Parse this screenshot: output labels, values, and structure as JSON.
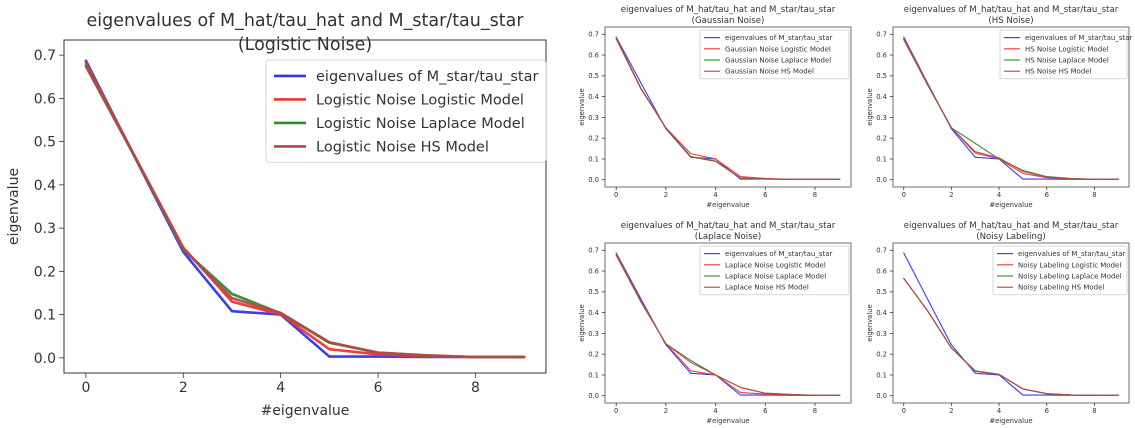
{
  "chart_data": [
    {
      "type": "line",
      "title": "eigenvalues of  M_hat/tau_hat and M_star/tau_star",
      "subtitle": "(Logistic Noise)",
      "xlabel": "#eigenvalue",
      "ylabel": "eigenvalue",
      "xlim": [
        -0.45,
        9.45
      ],
      "ylim": [
        -0.035,
        0.735
      ],
      "xticks": [
        0,
        2,
        4,
        6,
        8
      ],
      "yticks": [
        0.0,
        0.1,
        0.2,
        0.3,
        0.4,
        0.5,
        0.6,
        0.7
      ],
      "grid": false,
      "legend_position": "top-right",
      "x": [
        0,
        1,
        2,
        3,
        4,
        5,
        6,
        7,
        8,
        9
      ],
      "series": [
        {
          "name": "eigenvalues of M_star/tau_star",
          "color": "#3333ee",
          "values": [
            0.687,
            0.465,
            0.245,
            0.108,
            0.1,
            0.003,
            0.003,
            0.002,
            0.002,
            0.002
          ]
        },
        {
          "name": "Logistic Noise Logistic Model",
          "color": "#ee3333",
          "values": [
            0.682,
            0.467,
            0.255,
            0.13,
            0.1,
            0.02,
            0.008,
            0.003,
            0.002,
            0.002
          ]
        },
        {
          "name": "Logistic Noise Laplace Model",
          "color": "#2e8b2e",
          "values": [
            0.676,
            0.466,
            0.25,
            0.148,
            0.103,
            0.035,
            0.012,
            0.005,
            0.002,
            0.002
          ]
        },
        {
          "name": "Logistic Noise HS Model",
          "color": "#b04a4a",
          "values": [
            0.674,
            0.466,
            0.252,
            0.138,
            0.104,
            0.036,
            0.012,
            0.006,
            0.002,
            0.002
          ]
        }
      ]
    },
    {
      "type": "line",
      "title": "eigenvalues of  M_hat/tau_hat and M_star/tau_star",
      "subtitle": "(Gaussian Noise)",
      "xlabel": "#eigenvalue",
      "ylabel": "eigenvalue",
      "xlim": [
        -0.45,
        9.45
      ],
      "ylim": [
        -0.035,
        0.735
      ],
      "xticks": [
        0,
        2,
        4,
        6,
        8
      ],
      "yticks": [
        0.0,
        0.1,
        0.2,
        0.3,
        0.4,
        0.5,
        0.6,
        0.7
      ],
      "grid": false,
      "legend_position": "top-right",
      "x": [
        0,
        1,
        2,
        3,
        4,
        5,
        6,
        7,
        8,
        9
      ],
      "series": [
        {
          "name": "eigenvalues of M_star/tau_star",
          "color": "#3333ee",
          "values": [
            0.687,
            0.465,
            0.245,
            0.108,
            0.1,
            0.003,
            0.003,
            0.002,
            0.002,
            0.002
          ]
        },
        {
          "name": "Gaussian Noise Logistic Model",
          "color": "#ee3333",
          "values": [
            0.684,
            0.44,
            0.25,
            0.125,
            0.1,
            0.015,
            0.006,
            0.002,
            0.002,
            0.002
          ]
        },
        {
          "name": "Gaussian Noise Laplace Model",
          "color": "#2e8b2e",
          "values": [
            0.68,
            0.438,
            0.248,
            0.112,
            0.09,
            0.008,
            0.004,
            0.002,
            0.002,
            0.002
          ]
        },
        {
          "name": "Gaussian Noise HS Model",
          "color": "#b04a4a",
          "values": [
            0.678,
            0.436,
            0.25,
            0.11,
            0.088,
            0.008,
            0.004,
            0.002,
            0.002,
            0.002
          ]
        }
      ]
    },
    {
      "type": "line",
      "title": "eigenvalues of  M_hat/tau_hat and M_star/tau_star",
      "subtitle": "(HS Noise)",
      "xlabel": "#eigenvalue",
      "ylabel": "eigenvalue",
      "xlim": [
        -0.45,
        9.45
      ],
      "ylim": [
        -0.035,
        0.735
      ],
      "xticks": [
        0,
        2,
        4,
        6,
        8
      ],
      "yticks": [
        0.0,
        0.1,
        0.2,
        0.3,
        0.4,
        0.5,
        0.6,
        0.7
      ],
      "grid": false,
      "legend_position": "top-right",
      "x": [
        0,
        1,
        2,
        3,
        4,
        5,
        6,
        7,
        8,
        9
      ],
      "series": [
        {
          "name": "eigenvalues of M_star/tau_star",
          "color": "#3333ee",
          "values": [
            0.687,
            0.465,
            0.245,
            0.108,
            0.1,
            0.003,
            0.003,
            0.002,
            0.002,
            0.002
          ]
        },
        {
          "name": "HS Noise Logistic Model",
          "color": "#ee3333",
          "values": [
            0.68,
            0.46,
            0.25,
            0.128,
            0.1,
            0.03,
            0.01,
            0.005,
            0.002,
            0.002
          ]
        },
        {
          "name": "HS Noise Laplace Model",
          "color": "#2e8b2e",
          "values": [
            0.676,
            0.458,
            0.25,
            0.175,
            0.1,
            0.045,
            0.015,
            0.006,
            0.002,
            0.002
          ]
        },
        {
          "name": "HS Noise HS Model",
          "color": "#b04a4a",
          "values": [
            0.674,
            0.456,
            0.25,
            0.135,
            0.105,
            0.04,
            0.012,
            0.005,
            0.002,
            0.002
          ]
        }
      ]
    },
    {
      "type": "line",
      "title": "eigenvalues of  M_hat/tau_hat and M_star/tau_star",
      "subtitle": "(Laplace Noise)",
      "xlabel": "#eigenvalue",
      "ylabel": "eigenvalue",
      "xlim": [
        -0.45,
        9.45
      ],
      "ylim": [
        -0.035,
        0.735
      ],
      "xticks": [
        0,
        2,
        4,
        6,
        8
      ],
      "yticks": [
        0.0,
        0.1,
        0.2,
        0.3,
        0.4,
        0.5,
        0.6,
        0.7
      ],
      "grid": false,
      "legend_position": "top-right",
      "x": [
        0,
        1,
        2,
        3,
        4,
        5,
        6,
        7,
        8,
        9
      ],
      "series": [
        {
          "name": "eigenvalues of M_star/tau_star",
          "color": "#3333ee",
          "values": [
            0.687,
            0.465,
            0.245,
            0.108,
            0.1,
            0.003,
            0.003,
            0.002,
            0.002,
            0.002
          ]
        },
        {
          "name": "Laplace Noise Logistic Model",
          "color": "#ee3333",
          "values": [
            0.682,
            0.455,
            0.25,
            0.12,
            0.1,
            0.015,
            0.008,
            0.003,
            0.002,
            0.002
          ]
        },
        {
          "name": "Laplace Noise Laplace Model",
          "color": "#2e8b2e",
          "values": [
            0.678,
            0.452,
            0.25,
            0.17,
            0.1,
            0.04,
            0.012,
            0.006,
            0.002,
            0.002
          ]
        },
        {
          "name": "Laplace Noise HS Model",
          "color": "#b04a4a",
          "values": [
            0.676,
            0.45,
            0.25,
            0.16,
            0.1,
            0.04,
            0.012,
            0.006,
            0.002,
            0.002
          ]
        }
      ]
    },
    {
      "type": "line",
      "title": "eigenvalues of  M_hat/tau_hat and M_star/tau_star",
      "subtitle": "(Noisy Labeling)",
      "xlabel": "#eigenvalue",
      "ylabel": "eigenvalue",
      "xlim": [
        -0.45,
        9.45
      ],
      "ylim": [
        -0.035,
        0.735
      ],
      "xticks": [
        0,
        2,
        4,
        6,
        8
      ],
      "yticks": [
        0.0,
        0.1,
        0.2,
        0.3,
        0.4,
        0.5,
        0.6,
        0.7
      ],
      "grid": false,
      "legend_position": "top-right",
      "x": [
        0,
        1,
        2,
        3,
        4,
        5,
        6,
        7,
        8,
        9
      ],
      "series": [
        {
          "name": "eigenvalues of M_star/tau_star",
          "color": "#3333ee",
          "values": [
            0.687,
            0.465,
            0.245,
            0.108,
            0.1,
            0.003,
            0.003,
            0.002,
            0.002,
            0.002
          ]
        },
        {
          "name": "Noisy Labeling Logistic Model",
          "color": "#ee3333",
          "values": [
            0.565,
            0.41,
            0.23,
            0.118,
            0.103,
            0.032,
            0.01,
            0.004,
            0.002,
            0.002
          ]
        },
        {
          "name": "Noisy Labeling Laplace Model",
          "color": "#2e8b2e",
          "values": [
            0.565,
            0.408,
            0.23,
            0.12,
            0.103,
            0.033,
            0.01,
            0.004,
            0.002,
            0.002
          ]
        },
        {
          "name": "Noisy Labeling HS Model",
          "color": "#b04a4a",
          "values": [
            0.565,
            0.408,
            0.23,
            0.118,
            0.102,
            0.033,
            0.01,
            0.004,
            0.002,
            0.002
          ]
        }
      ]
    }
  ]
}
